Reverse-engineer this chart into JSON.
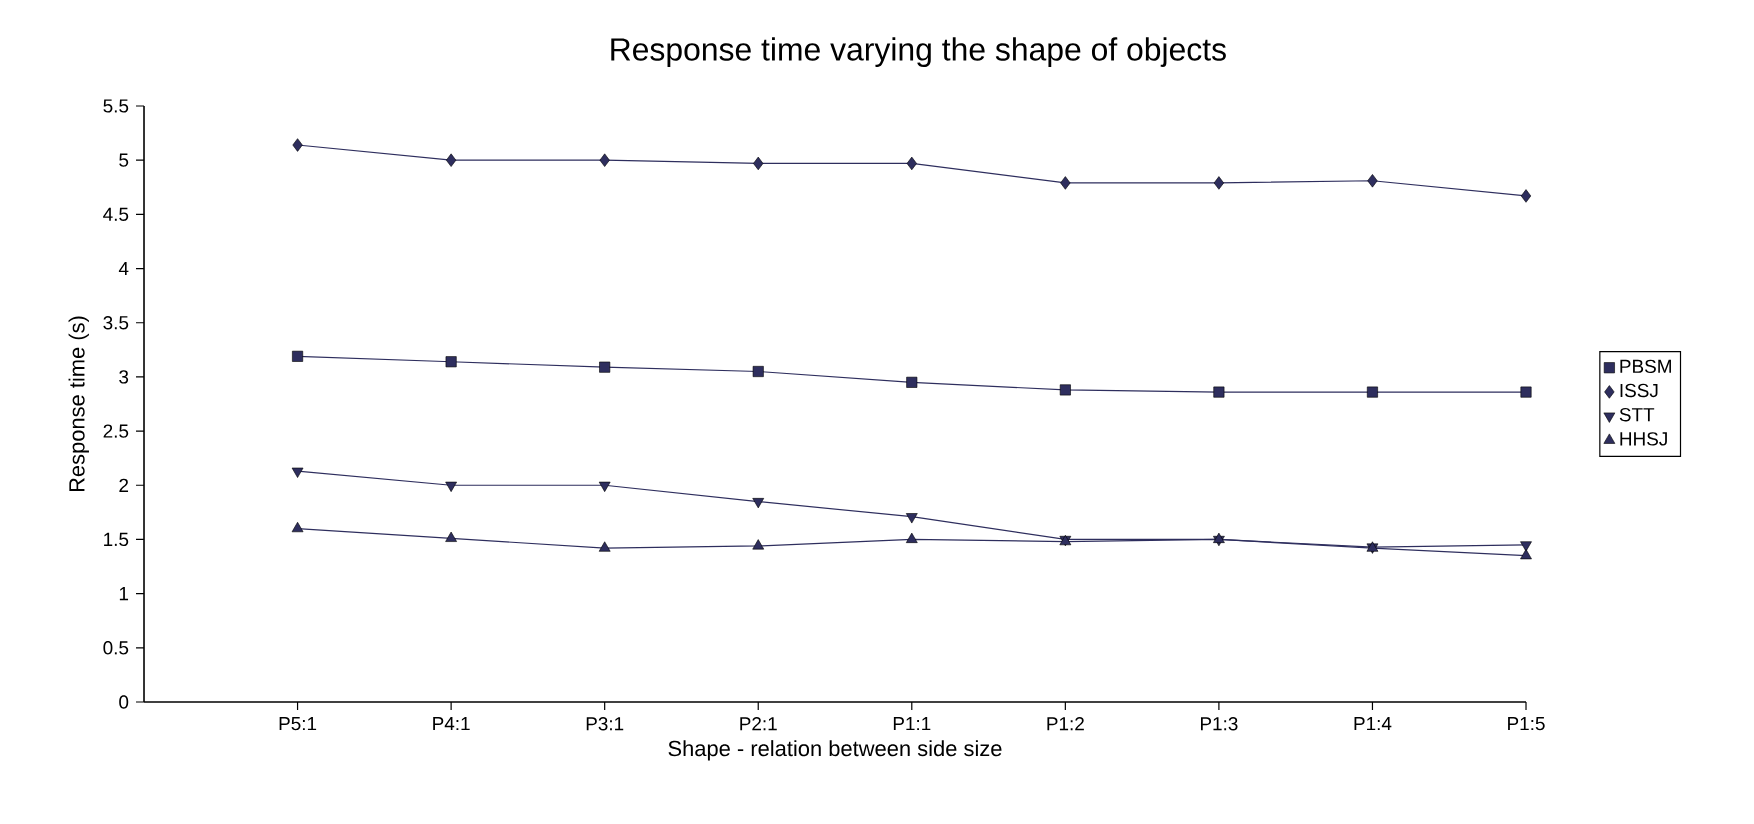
{
  "chart_data": {
    "type": "line",
    "title": "Response time varying the shape of objects",
    "xlabel": "Shape - relation between side size",
    "ylabel": "Response time (s)",
    "categories": [
      null,
      "P5:1",
      "P4:1",
      "P3:1",
      "P2:1",
      "P1:1",
      "P1:2",
      "P1:3",
      "P1:4",
      "P1:5"
    ],
    "series": [
      {
        "name": "PBSM",
        "color": "#2e2e5e",
        "marker": "square",
        "values": [
          null,
          3.19,
          3.14,
          3.09,
          3.05,
          2.95,
          2.88,
          2.86,
          2.86,
          2.86
        ]
      },
      {
        "name": "ISSJ",
        "color": "#2e2e5e",
        "marker": "diamond",
        "values": [
          null,
          5.14,
          5.0,
          5.0,
          4.97,
          4.97,
          4.79,
          4.79,
          4.81,
          4.67
        ]
      },
      {
        "name": "STT",
        "color": "#2e2e5e",
        "marker": "triangle-down",
        "values": [
          null,
          2.13,
          2.0,
          2.0,
          1.85,
          1.71,
          1.5,
          1.5,
          1.43,
          1.45
        ]
      },
      {
        "name": "HHSJ",
        "color": "#2e2e5e",
        "marker": "triangle",
        "values": [
          null,
          1.6,
          1.51,
          1.42,
          1.44,
          1.5,
          1.48,
          1.5,
          1.42,
          1.35
        ]
      }
    ],
    "ylim": [
      0,
      5.5
    ],
    "yticks": [
      0,
      0.5,
      1,
      1.5,
      2,
      2.5,
      3,
      3.5,
      4,
      4.5,
      5,
      5.5
    ],
    "grid": false,
    "legend": "right",
    "line_style": "solid"
  }
}
